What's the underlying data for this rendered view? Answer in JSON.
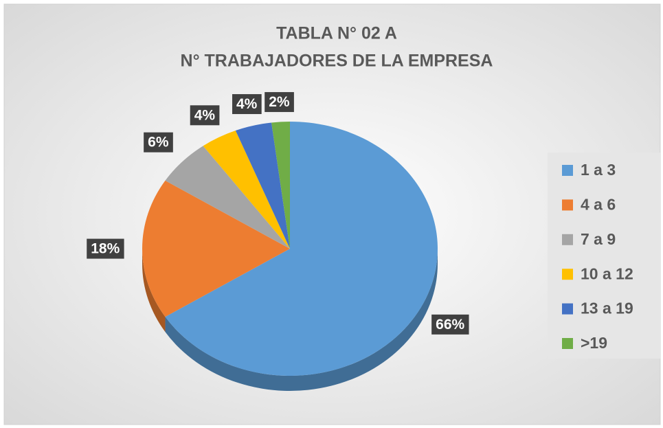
{
  "chart_data": {
    "type": "pie",
    "title": [
      "TABLA N° 02 A",
      "N° TRABAJADORES DE LA EMPRESA"
    ],
    "categories": [
      "1 a 3",
      "4 a 6",
      "7 a 9",
      "10 a 12",
      "13 a 19",
      ">19"
    ],
    "values": [
      66,
      18,
      6,
      4,
      4,
      2
    ],
    "value_labels": [
      "66%",
      "18%",
      "6%",
      "4%",
      "4%",
      "2%"
    ],
    "colors": [
      "#5b9bd5",
      "#ed7d31",
      "#a5a5a5",
      "#ffc000",
      "#4472c4",
      "#70ad47"
    ],
    "legend": "right"
  }
}
